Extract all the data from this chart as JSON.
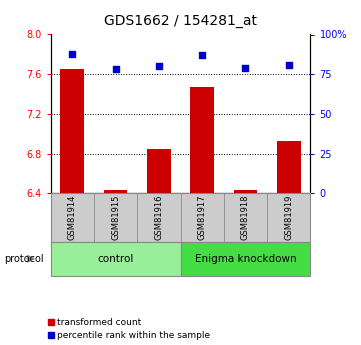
{
  "title": "GDS1662 / 154281_at",
  "samples": [
    "GSM81914",
    "GSM81915",
    "GSM81916",
    "GSM81917",
    "GSM81918",
    "GSM81919"
  ],
  "transformed_counts": [
    7.65,
    6.43,
    6.85,
    7.47,
    6.43,
    6.93
  ],
  "percentile_ranks": [
    88,
    78,
    80,
    87,
    79,
    81
  ],
  "ylim_left": [
    6.4,
    8.0
  ],
  "ylim_right": [
    0,
    100
  ],
  "left_ticks": [
    6.4,
    6.8,
    7.2,
    7.6,
    8.0
  ],
  "right_ticks": [
    0,
    25,
    50,
    75,
    100
  ],
  "bar_color": "#cc0000",
  "scatter_color": "#0000cc",
  "bar_bottom": 6.4,
  "group_info": [
    {
      "start": 0,
      "end": 2,
      "label": "control",
      "color": "#99ee99"
    },
    {
      "start": 3,
      "end": 5,
      "label": "Enigma knockdown",
      "color": "#44dd44"
    }
  ],
  "sample_box_color": "#cccccc",
  "protocol_label": "protocol",
  "legend_bar_label": "transformed count",
  "legend_scatter_label": "percentile rank within the sample",
  "title_fontsize": 10,
  "tick_fontsize": 7,
  "sample_fontsize": 6,
  "group_fontsize": 7.5,
  "legend_fontsize": 6.5
}
